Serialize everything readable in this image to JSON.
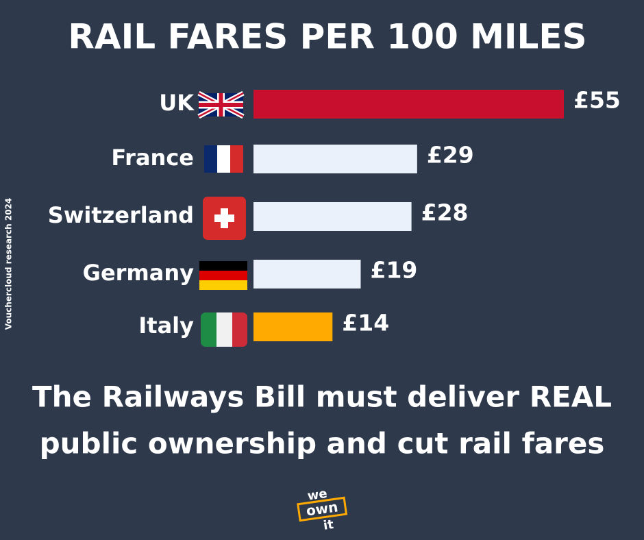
{
  "chart_data": {
    "type": "bar",
    "orientation": "horizontal",
    "title": "RAIL FARES PER 100 MILES",
    "categories": [
      "UK",
      "France",
      "Switzerland",
      "Germany",
      "Italy"
    ],
    "values": [
      55,
      29,
      28,
      19,
      14
    ],
    "value_labels": [
      "£55",
      "£29",
      "£28",
      "£19",
      "£14"
    ],
    "colors": [
      "#c8102e",
      "#eaf1fb",
      "#eaf1fb",
      "#eaf1fb",
      "#ffaa00"
    ],
    "source": "Vouchercloud research 2024",
    "message": [
      "The Railways Bill must deliver REAL",
      "public ownership and cut rail fares"
    ],
    "logo": [
      "we",
      "own",
      "it"
    ]
  }
}
